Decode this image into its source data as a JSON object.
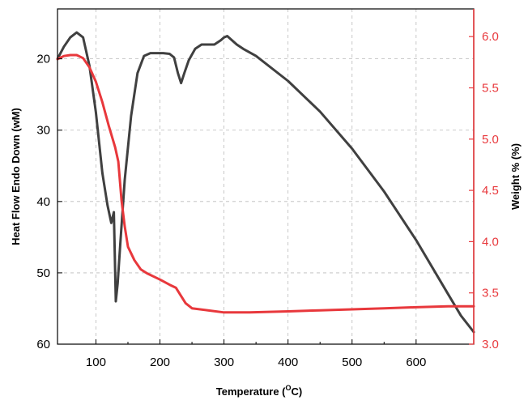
{
  "chart_data": {
    "type": "line",
    "xlabel": "Temperature (",
    "xlabel_sup": "O",
    "xlabel_unit": "C)",
    "ylabel_left": "Heat Flow Endo Down (wM)",
    "ylabel_right": "Weight % (%)",
    "xlim": [
      40,
      690
    ],
    "ylim_left": [
      60,
      13
    ],
    "ylim_right": [
      3.0,
      6.27
    ],
    "x_ticks": [
      100,
      200,
      300,
      400,
      500,
      600
    ],
    "y_left_ticks": [
      20,
      30,
      40,
      50,
      60
    ],
    "y_right_ticks": [
      "3.0",
      "3.5",
      "4.0",
      "4.5",
      "5.0",
      "5.5",
      "6.0"
    ],
    "colors": {
      "left_series": "#404040",
      "right_series": "#e8383c",
      "axis_right": "#e8383c"
    },
    "series": [
      {
        "name": "Heat Flow",
        "axis": "left",
        "x": [
          40,
          50,
          60,
          70,
          80,
          90,
          100,
          110,
          118,
          124,
          128,
          131,
          134,
          138,
          145,
          155,
          165,
          175,
          185,
          195,
          205,
          215,
          222,
          228,
          233,
          238,
          245,
          255,
          265,
          275,
          285,
          295,
          300,
          305,
          310,
          320,
          330,
          350,
          400,
          450,
          500,
          550,
          600,
          650,
          670,
          690
        ],
        "y": [
          20.0,
          18.3,
          17.0,
          16.3,
          17.0,
          21.0,
          27.5,
          36.0,
          40.5,
          43.0,
          41.5,
          54.0,
          51.5,
          46.0,
          37.0,
          28.0,
          22.0,
          19.6,
          19.2,
          19.2,
          19.2,
          19.3,
          19.8,
          22.0,
          23.4,
          22.0,
          20.2,
          18.6,
          18.0,
          18.0,
          18.0,
          17.4,
          17.0,
          16.8,
          17.2,
          18.0,
          18.6,
          19.6,
          23.1,
          27.4,
          32.6,
          38.6,
          45.4,
          53.0,
          56.0,
          58.3
        ]
      },
      {
        "name": "Weight %",
        "axis": "right",
        "x": [
          40,
          50,
          60,
          70,
          80,
          90,
          100,
          110,
          120,
          130,
          135,
          140,
          145,
          150,
          160,
          170,
          180,
          200,
          215,
          225,
          230,
          240,
          250,
          275,
          300,
          340,
          400,
          450,
          500,
          550,
          600,
          650,
          690
        ],
        "y": [
          5.78,
          5.81,
          5.82,
          5.82,
          5.79,
          5.7,
          5.56,
          5.36,
          5.13,
          4.92,
          4.78,
          4.4,
          4.15,
          3.95,
          3.82,
          3.73,
          3.69,
          3.63,
          3.58,
          3.55,
          3.5,
          3.4,
          3.35,
          3.33,
          3.31,
          3.31,
          3.32,
          3.33,
          3.34,
          3.35,
          3.36,
          3.37,
          3.37
        ]
      }
    ]
  }
}
